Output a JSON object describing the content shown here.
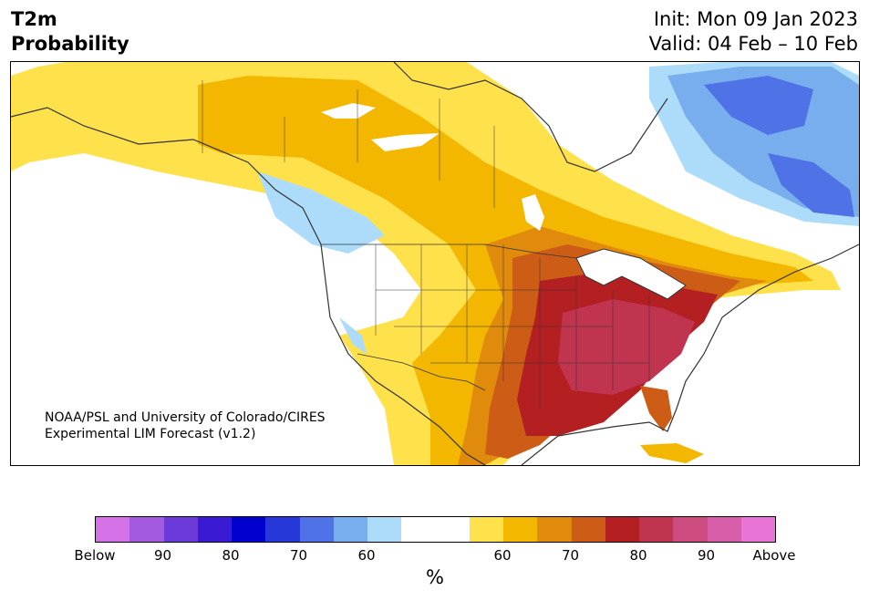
{
  "title": {
    "line1": "T2m",
    "line2": "Probability"
  },
  "dates": {
    "init": "Init: Mon 09 Jan 2023",
    "valid": "Valid: 04 Feb – 10 Feb"
  },
  "credit": {
    "line1": "NOAA/PSL and University of Colorado/CIRES",
    "line2": "Experimental LIM Forecast (v1.2)"
  },
  "colorbar": {
    "colors": [
      "#d572e8",
      "#a35ae0",
      "#6b3ad8",
      "#3a1ad2",
      "#0000cf",
      "#2738d8",
      "#4f72e6",
      "#78aeee",
      "#acdcfa",
      "#ffffff",
      "#ffffff",
      "#ffe14c",
      "#f3b700",
      "#e08b0c",
      "#cc5c16",
      "#b41f22",
      "#c03450",
      "#cc4c80",
      "#d85eaa",
      "#e874d8"
    ],
    "ticks": [
      "Below",
      "90",
      "80",
      "70",
      "60",
      "60",
      "70",
      "80",
      "90",
      "Above"
    ],
    "unit": "%"
  },
  "map_colors": {
    "yellow": "#ffe14c",
    "gold": "#f3b700",
    "orange": "#e08b0c",
    "darkorange": "#cc5c16",
    "red": "#b41f22",
    "crimson": "#c03450",
    "lightblue": "#acdcfa",
    "blue": "#78aeee",
    "darkblue": "#4f72e6"
  }
}
